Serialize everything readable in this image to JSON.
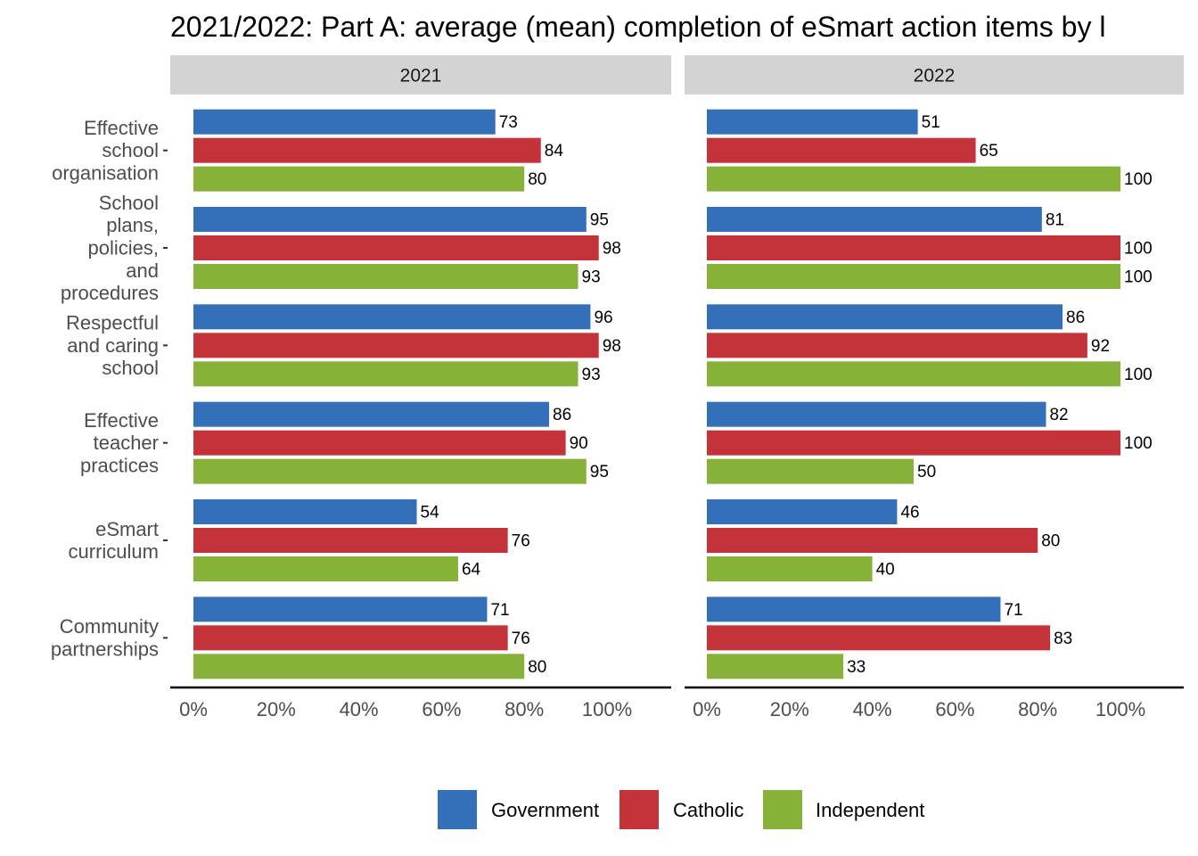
{
  "chart_data": {
    "type": "bar",
    "orientation": "horizontal",
    "title": "2021/2022: Part A: average (mean) completion of eSmart action items by l",
    "facets": [
      "2021",
      "2022"
    ],
    "categories": [
      "Effective school organisation",
      "School plans, policies, and procedures",
      "Respectful and caring school",
      "Effective teacher practices",
      "eSmart curriculum",
      "Community partnerships"
    ],
    "category_lines": [
      [
        "Effective",
        "school",
        "organisation"
      ],
      [
        "School",
        "plans,",
        "policies,",
        "and",
        "procedures"
      ],
      [
        "Respectful",
        "and caring",
        "school"
      ],
      [
        "Effective",
        "teacher",
        "practices"
      ],
      [
        "eSmart",
        "curriculum"
      ],
      [
        "Community",
        "partnerships"
      ]
    ],
    "series": [
      {
        "name": "Government",
        "color": "#3370b9",
        "values": {
          "2021": [
            73,
            95,
            96,
            86,
            54,
            71
          ],
          "2022": [
            51,
            81,
            86,
            82,
            46,
            71
          ]
        }
      },
      {
        "name": "Catholic",
        "color": "#c4323a",
        "values": {
          "2021": [
            84,
            98,
            98,
            90,
            76,
            76
          ],
          "2022": [
            65,
            100,
            92,
            100,
            80,
            83
          ]
        }
      },
      {
        "name": "Independent",
        "color": "#86b23a",
        "values": {
          "2021": [
            80,
            93,
            93,
            95,
            64,
            80
          ],
          "2022": [
            100,
            100,
            100,
            50,
            40,
            33
          ]
        }
      }
    ],
    "x_ticks": [
      "0%",
      "20%",
      "40%",
      "60%",
      "80%",
      "100%"
    ],
    "xlim": [
      0,
      100
    ],
    "xlabel": "",
    "ylabel": "",
    "legend_position": "bottom",
    "grid": false
  }
}
